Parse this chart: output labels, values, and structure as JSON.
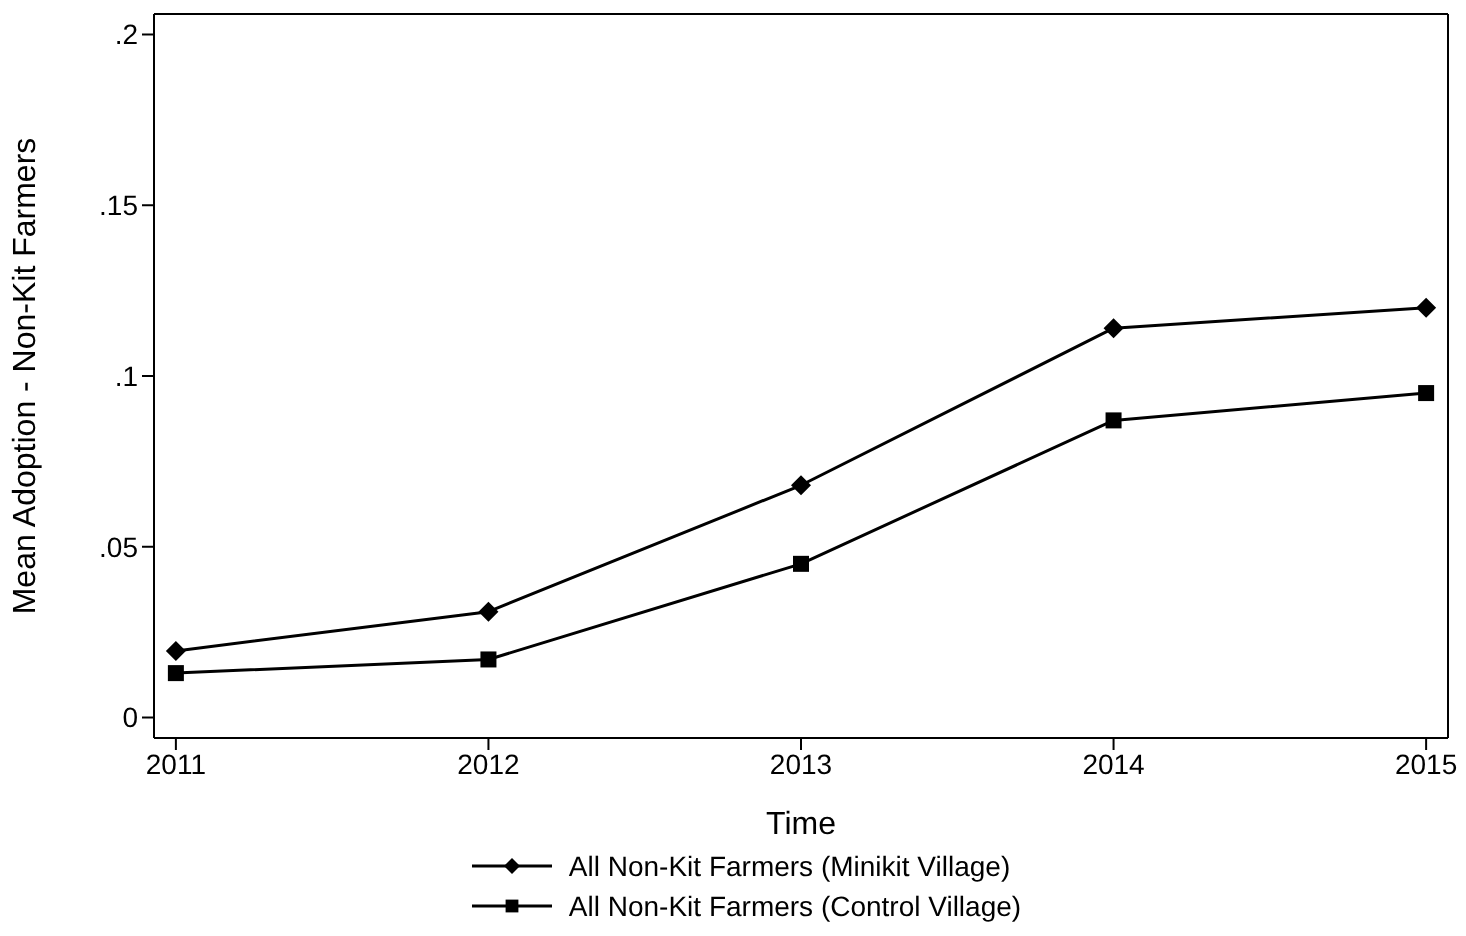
{
  "chart_data": {
    "type": "line",
    "xlabel": "Time",
    "ylabel": "Mean Adoption - Non-Kit Farmers",
    "x": [
      2011,
      2012,
      2013,
      2014,
      2015
    ],
    "series": [
      {
        "name": "All Non-Kit Farmers (Minikit Village)",
        "color": "#000000",
        "marker": "diamond",
        "values": [
          0.0195,
          0.031,
          0.068,
          0.114,
          0.12
        ]
      },
      {
        "name": "All Non-Kit Farmers (Control Village)",
        "color": "#000000",
        "marker": "square",
        "values": [
          0.013,
          0.017,
          0.045,
          0.087,
          0.095
        ]
      }
    ],
    "xlim": [
      2010.93,
      2015.07
    ],
    "xticks": [
      2011,
      2012,
      2013,
      2014,
      2015
    ],
    "ylim": [
      -0.006,
      0.206
    ],
    "yticks": [
      0,
      {
        "value": 0.05,
        "label": ".05"
      },
      {
        "value": 0.1,
        "label": ".1"
      },
      {
        "value": 0.15,
        "label": ".15"
      },
      {
        "value": 0.2,
        "label": ".2"
      }
    ],
    "grid": false,
    "legend": "bottom"
  }
}
